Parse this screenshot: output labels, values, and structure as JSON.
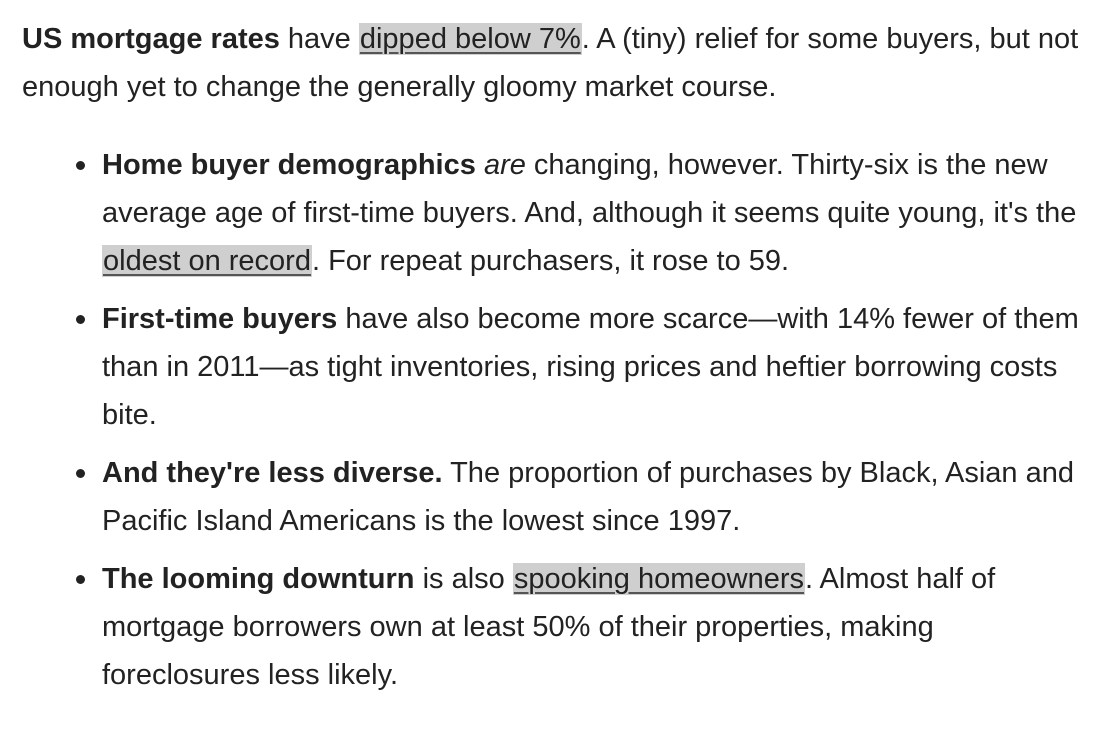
{
  "intro": {
    "lead": "US mortgage rates",
    "text1": " have ",
    "link": "dipped below 7%",
    "text2": ". A (tiny) relief for some buyers, but not enough yet to change the generally gloomy market course."
  },
  "bullets": [
    {
      "lead": "Home buyer demographics",
      "text1": " ",
      "emphasis": "are",
      "text2": " changing, however. Thirty-six is the new average age of first-time buyers. And, although it seems quite young, it's the ",
      "link": "oldest on record",
      "text3": ". For repeat purchasers, it rose to 59."
    },
    {
      "lead": "First-time buyers",
      "text1": " have also become more scarce—with 14% fewer of them than in 2011—as tight inventories, rising prices and heftier borrowing costs bite."
    },
    {
      "lead": "And they're less diverse.",
      "text1": " The proportion of purchases by Black, Asian and Pacific Island Americans is the lowest since 1997."
    },
    {
      "lead": "The looming downturn",
      "text1": " is also ",
      "link": "spooking homeowners",
      "text2": ". Almost half of mortgage borrowers own at least 50% of their properties, making foreclosures less likely."
    }
  ]
}
